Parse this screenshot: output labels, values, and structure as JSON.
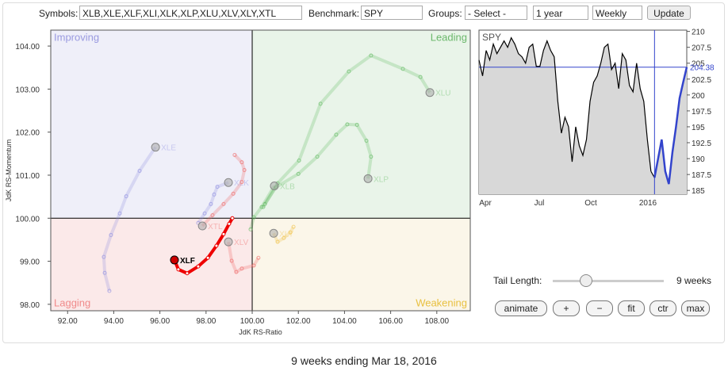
{
  "toolbar": {
    "symbols_label": "Symbols:",
    "symbols": "XLB,XLE,XLF,XLI,XLK,XLP,XLU,XLV,XLY,XTL",
    "benchmark_label": "Benchmark:",
    "benchmark": "SPY",
    "groups_label": "Groups:",
    "groups": "- Select -",
    "period": "1 year",
    "frequency": "Weekly",
    "update": "Update"
  },
  "chart_data": [
    {
      "type": "scatter",
      "x_label": "JdK RS-Ratio",
      "y_label": "JdK RS-Momentum",
      "center": 100,
      "quadrants": {
        "top_left": "Improving",
        "top_right": "Leading",
        "bottom_left": "Lagging",
        "bottom_right": "Weakening"
      },
      "xlim": [
        91.27,
        109.45
      ],
      "ylim": [
        97.85,
        104.37
      ],
      "xticks": [
        {
          "value": 92,
          "label": "92.00"
        },
        {
          "value": 94,
          "label": "94.00"
        },
        {
          "value": 96,
          "label": "96.00"
        },
        {
          "value": 98,
          "label": "98.00"
        },
        {
          "value": 100,
          "label": "100.00"
        },
        {
          "value": 102,
          "label": "102.00"
        },
        {
          "value": 104,
          "label": "104.00"
        },
        {
          "value": 106,
          "label": "106.00"
        },
        {
          "value": 108,
          "label": "108.00"
        }
      ],
      "yticks": [
        {
          "value": 98,
          "label": "98.00"
        },
        {
          "value": 99,
          "label": "99.00"
        },
        {
          "value": 100,
          "label": "100.00"
        },
        {
          "value": 101,
          "label": "101.00"
        },
        {
          "value": 102,
          "label": "102.00"
        },
        {
          "value": 103,
          "label": "103.00"
        },
        {
          "value": 104,
          "label": "104.00"
        }
      ],
      "series": [
        {
          "name": "XLE",
          "color": "#8a8ae0",
          "x": [
            93.81,
            93.61,
            93.57,
            93.88,
            94.26,
            94.54,
            95.12,
            95.81
          ],
          "y": [
            98.31,
            98.73,
            99.1,
            99.61,
            100.11,
            100.51,
            101.1,
            101.65
          ]
        },
        {
          "name": "XLU",
          "color": "#5cb85c",
          "x": [
            100.48,
            101.1,
            102.03,
            102.96,
            104.19,
            105.15,
            106.53,
            107.29,
            107.7
          ],
          "y": [
            100.26,
            100.81,
            101.34,
            102.66,
            103.41,
            103.78,
            103.47,
            103.28,
            102.92
          ]
        },
        {
          "name": "XLP",
          "color": "#5cb85c",
          "x": [
            100.55,
            101.03,
            102.0,
            102.82,
            103.64,
            104.12,
            104.54,
            104.95,
            105.15,
            105.02
          ],
          "y": [
            100.33,
            100.72,
            101.03,
            101.43,
            101.94,
            102.18,
            102.17,
            101.8,
            101.43,
            100.92
          ]
        },
        {
          "name": "XLB",
          "color": "#5cb85c",
          "x": [
            99.93,
            100.07,
            100.41,
            100.96
          ],
          "y": [
            99.74,
            100.02,
            100.26,
            100.75
          ]
        },
        {
          "name": "XLK",
          "color": "#8a8ae0",
          "x": [
            97.66,
            97.94,
            98.21,
            98.35,
            98.49,
            98.97
          ],
          "y": [
            99.89,
            100.11,
            100.33,
            100.55,
            100.73,
            100.83
          ]
        },
        {
          "name": "XTL",
          "color": "#ee6060",
          "x": [
            99.24,
            99.55,
            99.66,
            99.55,
            99.18,
            98.76,
            98.28,
            97.84
          ],
          "y": [
            101.47,
            101.3,
            101.12,
            100.84,
            100.57,
            100.33,
            100.07,
            99.82
          ]
        },
        {
          "name": "XLV",
          "color": "#ee6060",
          "x": [
            100.27,
            100.07,
            99.55,
            99.31,
            99.11,
            98.97
          ],
          "y": [
            99.08,
            98.9,
            98.83,
            98.75,
            99.01,
            99.45
          ]
        },
        {
          "name": "XLY",
          "color": "#f0c040",
          "x": [
            101.79,
            101.65,
            101.37,
            101.1,
            100.93
          ],
          "y": [
            99.8,
            99.67,
            99.54,
            99.45,
            99.65
          ]
        },
        {
          "name": "XLF",
          "color": "#ee0000",
          "highlight": true,
          "x": [
            99.14,
            99.0,
            98.76,
            98.45,
            98.08,
            97.66,
            97.18,
            96.8,
            96.63
          ],
          "y": [
            100.0,
            99.87,
            99.63,
            99.36,
            99.08,
            98.88,
            98.72,
            98.81,
            99.03
          ]
        }
      ]
    },
    {
      "type": "line",
      "title": "SPY",
      "x_labels": [
        "Apr",
        "Jul",
        "Oct",
        "2016"
      ],
      "ylim": [
        184.4,
        210.2
      ],
      "yticks": [
        185,
        187.5,
        190,
        192.5,
        195,
        197.5,
        200,
        202.5,
        205,
        207.5,
        210
      ],
      "series": [
        {
          "color": "#000000",
          "values": [
            205.5,
            203,
            207,
            205.5,
            208,
            206.5,
            207.5,
            208.5,
            207.5,
            209,
            208,
            206.5,
            206,
            205,
            207.5,
            208,
            204.5,
            204.5,
            207,
            208.5,
            207,
            206,
            199,
            194,
            196.5,
            195,
            189.5,
            195,
            192,
            190.5,
            193,
            199,
            202,
            203,
            205,
            207.5,
            208,
            204,
            205,
            201,
            206.5,
            205.5,
            201.5,
            200.5,
            205,
            201,
            199,
            193,
            188
          ]
        },
        {
          "color": "#3344cc",
          "values": [
            187,
            190,
            193,
            188,
            186,
            191,
            195,
            199.5,
            202,
            204.38
          ]
        }
      ]
    }
  ],
  "controls": {
    "tail_label": "Tail Length:",
    "tail_value": "9 weeks",
    "buttons": [
      "animate",
      "+",
      "−",
      "fit",
      "ctr",
      "max"
    ]
  },
  "footer": "9 weeks ending Mar 18, 2016"
}
